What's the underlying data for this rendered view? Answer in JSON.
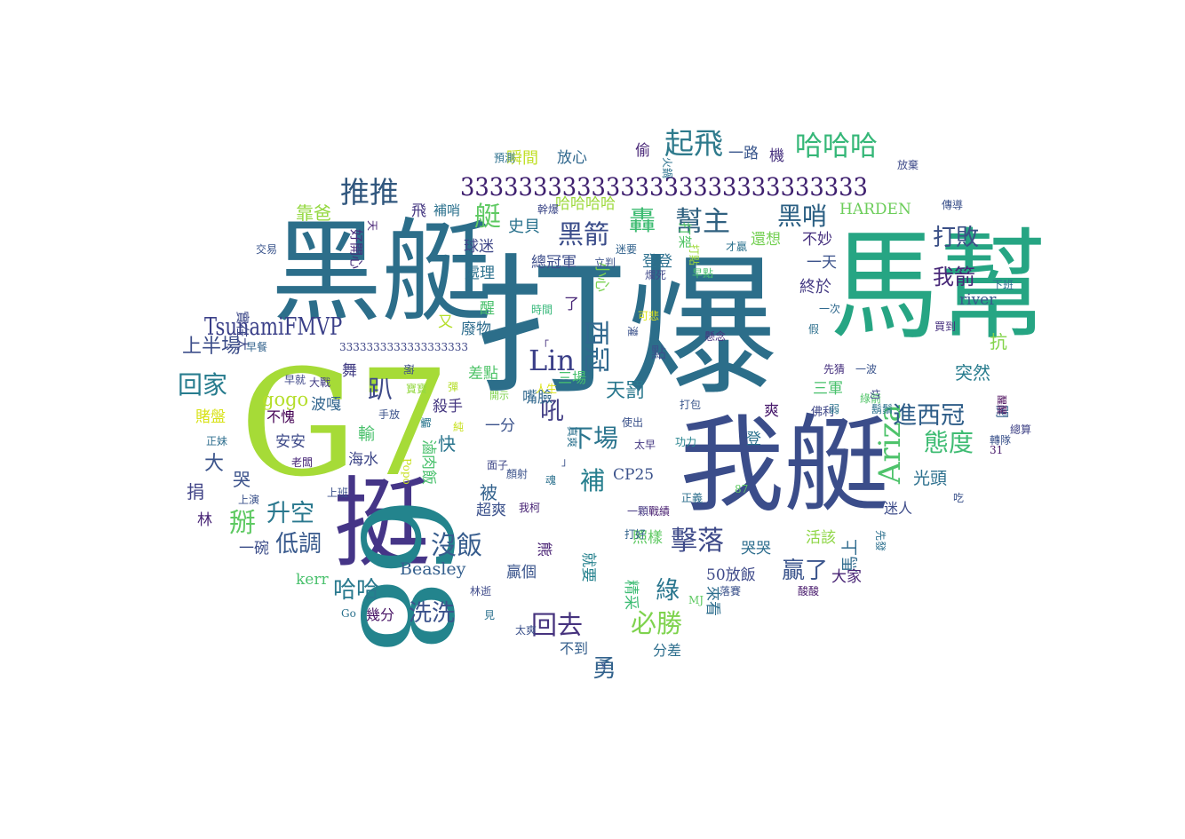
{
  "words": [
    {
      "text": "打爆",
      "color": "#2c6e8a"
    },
    {
      "text": "馬幫",
      "color": "#26a583"
    },
    {
      "text": "黑艇",
      "color": "#2c6e8a"
    },
    {
      "text": "G7",
      "color": "#a6db37"
    },
    {
      "text": "我艇",
      "color": "#3b4d8a"
    },
    {
      "text": "挺",
      "color": "#453587"
    },
    {
      "text": "68",
      "color": "#23848d"
    },
    {
      "text": "3333333333333333333333333333",
      "color": "#3e1f6e"
    },
    {
      "text": "TsunamiFMVP",
      "color": "#3a3f88"
    },
    {
      "text": "Ariza",
      "color": "#4ec36b"
    },
    {
      "text": "Lin",
      "color": "#3b3f88"
    },
    {
      "text": "推推",
      "color": "#31577e"
    },
    {
      "text": "起飛",
      "color": "#2e7a8c"
    },
    {
      "text": "哈哈哈",
      "color": "#35b778"
    },
    {
      "text": "黑哨",
      "color": "#2a5e82"
    },
    {
      "text": "幫主",
      "color": "#2f607f"
    },
    {
      "text": "黑箭",
      "color": "#3b4d8a"
    },
    {
      "text": "打敗",
      "color": "#3a4f86"
    },
    {
      "text": "我箭",
      "color": "#482878"
    },
    {
      "text": "回家",
      "color": "#277c8e"
    },
    {
      "text": "態度",
      "color": "#3fbc73"
    },
    {
      "text": "進西冠",
      "color": "#2e5d88"
    },
    {
      "text": "擊落",
      "color": "#3e4a89"
    },
    {
      "text": "沒飯",
      "color": "#365c8d"
    },
    {
      "text": "升空",
      "color": "#2a788e"
    },
    {
      "text": "哈哈",
      "color": "#29798e"
    },
    {
      "text": "洗洗",
      "color": "#3b528b"
    },
    {
      "text": "回去",
      "color": "#46337e"
    },
    {
      "text": "必勝",
      "color": "#7fd34e"
    },
    {
      "text": "綠",
      "color": "#2a768e"
    },
    {
      "text": "贏了",
      "color": "#3a548c"
    },
    {
      "text": "趴",
      "color": "#3e4a89"
    },
    {
      "text": "掰",
      "color": "#5ec962"
    },
    {
      "text": "低調",
      "color": "#38598c"
    },
    {
      "text": "艇",
      "color": "#5ec962"
    },
    {
      "text": "轟",
      "color": "#3fbc73"
    },
    {
      "text": "補",
      "color": "#277f8e"
    },
    {
      "text": "吼",
      "color": "#433e85"
    },
    {
      "text": "下場",
      "color": "#2b758e"
    },
    {
      "text": "勇",
      "color": "#33638d"
    },
    {
      "text": "西冠",
      "color": "#31688e"
    },
    {
      "text": "天罰",
      "color": "#2a788e"
    },
    {
      "text": "上半場",
      "color": "#3d4e8a"
    },
    {
      "text": "靠爸",
      "color": "#94d840"
    },
    {
      "text": "gogo",
      "color": "#b5de2b"
    },
    {
      "text": "HARDEN",
      "color": "#6ccd5a"
    },
    {
      "text": "Beasley",
      "color": "#345f8d"
    },
    {
      "text": "CP25",
      "color": "#3b528b"
    },
    {
      "text": "river",
      "color": "#38588c"
    },
    {
      "text": "kerr",
      "color": "#4ac16d"
    },
    {
      "text": "50放飯",
      "color": "#3e4989"
    },
    {
      "text": "光頭",
      "color": "#2d708e"
    },
    {
      "text": "馬上",
      "color": "#2f6b8e"
    },
    {
      "text": "大家",
      "color": "#482475"
    },
    {
      "text": "迷人",
      "color": "#3e4c8a"
    },
    {
      "text": "終於",
      "color": "#443a83"
    },
    {
      "text": "三軍",
      "color": "#4ac16d"
    },
    {
      "text": "抗",
      "color": "#84d44b"
    },
    {
      "text": "突然",
      "color": "#287c8e"
    },
    {
      "text": "一天",
      "color": "#3b528b"
    },
    {
      "text": "不妙",
      "color": "#46307e"
    },
    {
      "text": "還想",
      "color": "#75d054"
    },
    {
      "text": "史貝",
      "color": "#2c738e"
    },
    {
      "text": "處理",
      "color": "#2c718e"
    },
    {
      "text": "球迷",
      "color": "#3f4788"
    },
    {
      "text": "總冠軍",
      "color": "#3d4d8a"
    },
    {
      "text": "登登",
      "color": "#2d708e"
    },
    {
      "text": "殺手",
      "color": "#453781"
    },
    {
      "text": "波嘎",
      "color": "#32658e"
    },
    {
      "text": "輸",
      "color": "#4ac16d"
    },
    {
      "text": "安安",
      "color": "#3e4a89"
    },
    {
      "text": "不愧",
      "color": "#440154"
    },
    {
      "text": "海水",
      "color": "#3f4889"
    },
    {
      "text": "被",
      "color": "#33628d"
    },
    {
      "text": "超爽",
      "color": "#3b518b"
    },
    {
      "text": "一分",
      "color": "#3b528b"
    },
    {
      "text": "嘴臉",
      "color": "#31688e"
    },
    {
      "text": "三場",
      "color": "#48c16e"
    },
    {
      "text": "差點",
      "color": "#50c46a"
    },
    {
      "text": "廢物",
      "color": "#2e6d8e"
    },
    {
      "text": "小心",
      "color": "#7ad151"
    },
    {
      "text": "快",
      "color": "#2b758e"
    },
    {
      "text": "贏個",
      "color": "#3a548c"
    },
    {
      "text": "照樣",
      "color": "#5ec962"
    },
    {
      "text": "分差",
      "color": "#2e6f8e"
    },
    {
      "text": "不到",
      "color": "#355f8d"
    },
    {
      "text": "活該",
      "color": "#8ed645"
    },
    {
      "text": "哭哭",
      "color": "#2e6e8e"
    },
    {
      "text": "大",
      "color": "#3a538b"
    },
    {
      "text": "捐",
      "color": "#414487"
    },
    {
      "text": "林",
      "color": "#482576"
    },
    {
      "text": "一碗",
      "color": "#3d4e8a"
    },
    {
      "text": "哭",
      "color": "#3b528b"
    },
    {
      "text": "賭盤",
      "color": "#d8e219"
    },
    {
      "text": "瞬間",
      "color": "#c0df25"
    },
    {
      "text": "放心",
      "color": "#31688e"
    },
    {
      "text": "偷",
      "color": "#482677"
    },
    {
      "text": "一路",
      "color": "#39568c"
    },
    {
      "text": "機",
      "color": "#46317e"
    },
    {
      "text": "哈哈哈哈",
      "color": "#9dd93b"
    },
    {
      "text": "飛",
      "color": "#453882"
    },
    {
      "text": "補哨",
      "color": "#2c728e"
    },
    {
      "text": "滷肉飯",
      "color": "#4ac16d"
    },
    {
      "text": "熊",
      "color": "#482173"
    },
    {
      "text": "就要",
      "color": "#26828e"
    },
    {
      "text": "精采",
      "color": "#3dbc74"
    },
    {
      "text": "來看",
      "color": "#2e6e8e"
    },
    {
      "text": "幾分",
      "color": "#471365"
    },
    {
      "text": "醒",
      "color": "#4ac16d"
    },
    {
      "text": "好開心",
      "color": "#472d7b"
    },
    {
      "text": "實在太",
      "color": "#3e4989"
    },
    {
      "text": "打架",
      "color": "#54c568"
    },
    {
      "text": "3333333333333333333",
      "color": "#3f4788"
    },
    {
      "text": "舞",
      "color": "#433e85"
    },
    {
      "text": "爽",
      "color": "#481a6c"
    },
    {
      "text": "點",
      "color": "#3b518b"
    },
    {
      "text": "又",
      "color": "#b5de2b"
    },
    {
      "text": "了",
      "color": "#482677"
    },
    {
      "text": "登",
      "color": "#2c718e"
    },
    {
      "text": "開",
      "color": "#34618d"
    },
    {
      "text": "佛利",
      "color": "#3f4788"
    },
    {
      "text": "一次",
      "color": "#30698e"
    },
    {
      "text": "懸念",
      "color": "#46327e"
    },
    {
      "text": "買到",
      "color": "#46307e"
    },
    {
      "text": "傳導",
      "color": "#3b518b"
    },
    {
      "text": "放棄",
      "color": "#3e4a89"
    },
    {
      "text": "火鍋",
      "color": "#2c728e"
    },
    {
      "text": "預測",
      "color": "#2d708e"
    },
    {
      "text": "交易",
      "color": "#3a548c"
    },
    {
      "text": "幹爆",
      "color": "#3e4989"
    },
    {
      "text": "迷要",
      "color": "#33638d"
    },
    {
      "text": "立判",
      "color": "#3b528b"
    },
    {
      "text": "才贏",
      "color": "#2c728e"
    },
    {
      "text": "打點",
      "color": "#9fda3a"
    },
    {
      "text": "早點",
      "color": "#4ac16d"
    },
    {
      "text": "爛死",
      "color": "#3f4889"
    },
    {
      "text": "下班",
      "color": "#2e6e8e"
    },
    {
      "text": "時間",
      "color": "#35b779"
    },
    {
      "text": "可悲",
      "color": "#dde318"
    },
    {
      "text": "灌",
      "color": "#3b528b"
    },
    {
      "text": "假",
      "color": "#2d708e"
    },
    {
      "text": "先猜",
      "color": "#46307e"
    },
    {
      "text": "一波",
      "color": "#3a548c"
    },
    {
      "text": "開示",
      "color": "#7fd34e"
    },
    {
      "text": "綠箭",
      "color": "#52c569"
    },
    {
      "text": "切",
      "color": "#3f4889"
    },
    {
      "text": "鬍鬚",
      "color": "#2c718e"
    },
    {
      "text": "弱",
      "color": "#2b758e"
    },
    {
      "text": "手放",
      "color": "#3b528b"
    },
    {
      "text": "早餐",
      "color": "#33638d"
    },
    {
      "text": "早就",
      "color": "#3f4889"
    },
    {
      "text": "大戰",
      "color": "#433e85"
    },
    {
      "text": "碗",
      "color": "#3e4c8a"
    },
    {
      "text": "寶寶",
      "color": "#94d840"
    },
    {
      "text": "彈",
      "color": "#b5de2b"
    },
    {
      "text": "騙",
      "color": "#2a768e"
    },
    {
      "text": "純",
      "color": "#c8e020"
    },
    {
      "text": "真爽",
      "color": "#2c728e"
    },
    {
      "text": "使出",
      "color": "#3b528b"
    },
    {
      "text": "太早",
      "color": "#453882"
    },
    {
      "text": "功力",
      "color": "#26828e"
    },
    {
      "text": "打包",
      "color": "#39568c"
    },
    {
      "text": "正妹",
      "color": "#2e6e8e"
    },
    {
      "text": "老闆",
      "color": "#482878"
    },
    {
      "text": "Popo",
      "color": "#c8e020"
    },
    {
      "text": "面子",
      "color": "#3f4788"
    },
    {
      "text": "顏射",
      "color": "#3b528b"
    },
    {
      "text": "魂",
      "color": "#2c718e"
    },
    {
      "text": "戰績",
      "color": "#481f70"
    },
    {
      "text": "一顆",
      "color": "#453882"
    },
    {
      "text": "87",
      "color": "#5ec962"
    },
    {
      "text": "正義",
      "color": "#2e6f8e"
    },
    {
      "text": "轉隊",
      "color": "#3b528b"
    },
    {
      "text": "31",
      "color": "#481a6c"
    },
    {
      "text": "醒醒",
      "color": "#440154"
    },
    {
      "text": "總算",
      "color": "#414487"
    },
    {
      "text": "吃",
      "color": "#3b528b"
    },
    {
      "text": "先發",
      "color": "#2d708e"
    },
    {
      "text": "上演",
      "color": "#3b528b"
    },
    {
      "text": "上班",
      "color": "#3b518b"
    },
    {
      "text": "我柯",
      "color": "#482475"
    },
    {
      "text": "打好",
      "color": "#33638d"
    },
    {
      "text": "酸酸",
      "color": "#481a6c"
    },
    {
      "text": "落賽",
      "color": "#3b528b"
    },
    {
      "text": "MJ",
      "color": "#5ec962"
    },
    {
      "text": "見",
      "color": "#2c718e"
    },
    {
      "text": "林逝",
      "color": "#3e4a89"
    },
    {
      "text": "Go",
      "color": "#2c728e"
    },
    {
      "text": "太爽",
      "color": "#3b518b"
    },
    {
      "text": "x",
      "color": "#3b528b"
    },
    {
      "text": "人生",
      "color": "#dde318"
    },
    {
      "text": "「",
      "color": "#46307e"
    },
    {
      "text": "」",
      "color": "#3b528b"
    },
    {
      "text": "天",
      "color": "#482475"
    },
    {
      "text": "已",
      "color": "#3b528b"
    }
  ]
}
